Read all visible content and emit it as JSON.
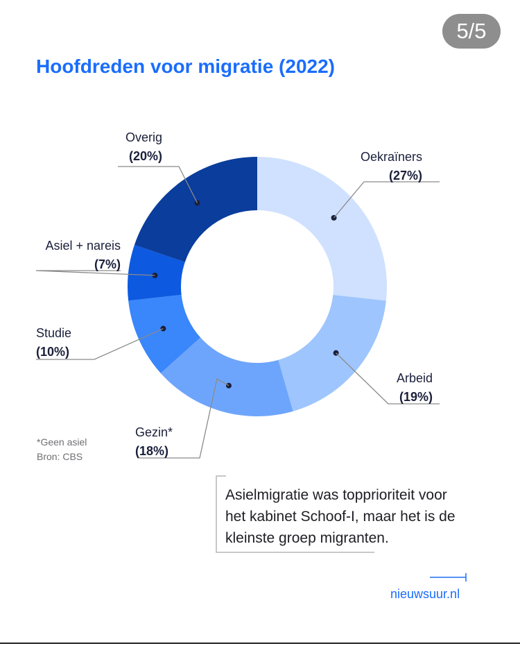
{
  "page_counter": "5/5",
  "title": "Hoofdreden voor migratie (2022)",
  "notes": [
    "*Geen asiel",
    "Bron: CBS"
  ],
  "callout": [
    "Asielmigratie was topprioriteit voor",
    "het kabinet Schoof-I, maar het is de",
    "kleinste groep migranten."
  ],
  "brand": "nieuwsuur.nl",
  "colors": {
    "accent": "#1a6dfc",
    "oekrainers": "#cfe1fe",
    "arbeid": "#9ec5fd",
    "gezin": "#6ea5fc",
    "studie": "#3a86fb",
    "asiel": "#0d5ae0",
    "overig": "#0a3d9c"
  },
  "chart_data": {
    "type": "pie",
    "title": "Hoofdreden voor migratie (2022)",
    "slices": [
      {
        "name": "Oekraïners",
        "value": 27,
        "label": "(27%)",
        "color": "#cfe1fe"
      },
      {
        "name": "Arbeid",
        "value": 19,
        "label": "(19%)",
        "color": "#9ec5fd"
      },
      {
        "name": "Gezin*",
        "value": 18,
        "label": "(18%)",
        "color": "#6ea5fc"
      },
      {
        "name": "Studie",
        "value": 10,
        "label": "(10%)",
        "color": "#3a86fb"
      },
      {
        "name": "Asiel + nareis",
        "value": 7,
        "label": "(7%)",
        "color": "#0d5ae0"
      },
      {
        "name": "Overig",
        "value": 20,
        "label": "(20%)",
        "color": "#0a3d9c"
      }
    ]
  }
}
